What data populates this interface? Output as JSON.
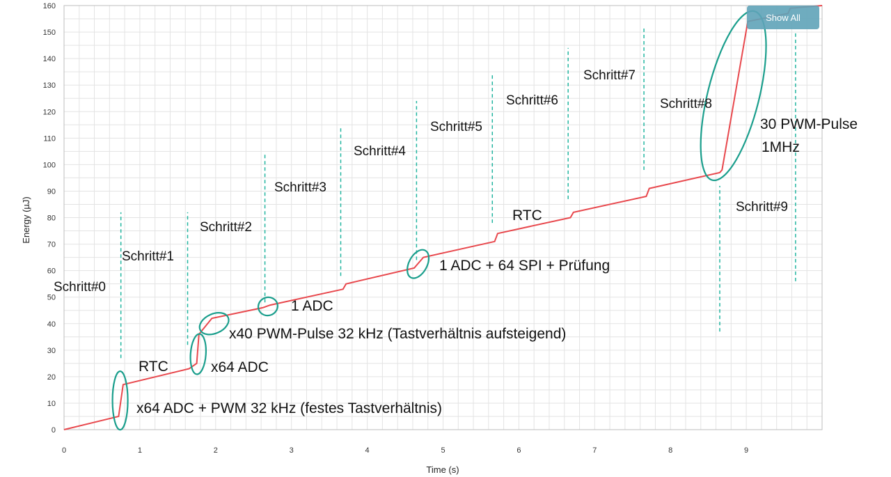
{
  "chart_data": {
    "type": "line",
    "title": "",
    "xlabel": "Time (s)",
    "ylabel": "Energy (µJ)",
    "xlim": [
      0,
      10
    ],
    "ylim": [
      0,
      160
    ],
    "x_ticks": [
      "0",
      "1",
      "2",
      "3",
      "4",
      "5",
      "6",
      "7",
      "8",
      "9"
    ],
    "y_ticks": [
      "0",
      "10",
      "20",
      "30",
      "40",
      "50",
      "60",
      "70",
      "80",
      "90",
      "100",
      "110",
      "120",
      "130",
      "140",
      "150",
      "160"
    ],
    "grid": true,
    "series": [
      {
        "color": "#e8474c",
        "x": [
          0,
          0.72,
          0.78,
          1.65,
          1.75,
          1.78,
          1.95,
          2.62,
          2.72,
          3.68,
          3.72,
          4.62,
          4.74,
          5.68,
          5.72,
          6.68,
          6.72,
          7.68,
          7.72,
          8.65,
          8.68,
          9.02,
          9.55,
          9.58,
          10.0
        ],
        "y": [
          0,
          5,
          17,
          23,
          25,
          36,
          42,
          46,
          47,
          53,
          55,
          61,
          65,
          71,
          74,
          80,
          82,
          88,
          91,
          97,
          98,
          154,
          157,
          159,
          160
        ]
      }
    ],
    "step_markers": [
      {
        "label": "Schritt#0",
        "x": 0.75,
        "y_range": [
          27,
          82
        ]
      },
      {
        "label": "Schritt#1",
        "x": 1.63,
        "y_range": [
          32,
          82
        ]
      },
      {
        "label": "Schritt#2",
        "x": 2.65,
        "y_range": [
          48,
          104
        ]
      },
      {
        "label": "Schritt#3",
        "x": 3.65,
        "y_range": [
          58,
          114
        ]
      },
      {
        "label": "Schritt#4",
        "x": 4.65,
        "y_range": [
          64,
          124
        ]
      },
      {
        "label": "Schritt#5",
        "x": 5.65,
        "y_range": [
          78,
          134
        ]
      },
      {
        "label": "Schritt#6",
        "x": 6.65,
        "y_range": [
          87,
          144
        ]
      },
      {
        "label": "Schritt#7",
        "x": 7.65,
        "y_range": [
          98,
          152
        ]
      },
      {
        "label": "Schritt#8",
        "x": 8.65,
        "y_range": [
          37,
          92
        ]
      },
      {
        "label": "Schritt#9",
        "x": 9.65,
        "y_range": [
          56,
          150
        ]
      }
    ],
    "annotations": [
      "x64 ADC + PWM 32 kHz (festes Tastverhältnis)",
      "RTC",
      "x64 ADC",
      "x40 PWM-Pulse 32 kHz (Tastverhältnis  aufsteigend)",
      "1 ADC",
      "1 ADC + 64 SPI + Prüfung",
      "RTC",
      "30 PWM-Pulse",
      "1MHz"
    ],
    "highlight_color": "#1a9e8c",
    "marker_color": "#22b5a0"
  },
  "toolbar": {
    "show_all_label": "Show All",
    "button_color": "#5fa3b8"
  }
}
